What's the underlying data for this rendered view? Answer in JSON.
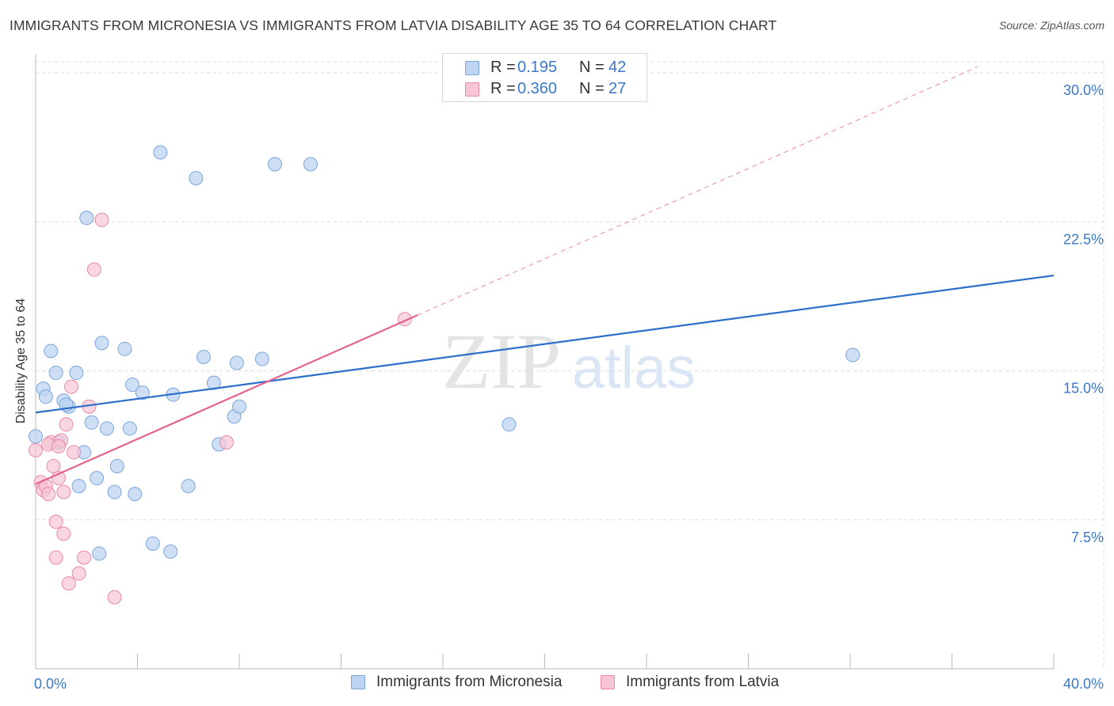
{
  "header": {
    "title": "IMMIGRANTS FROM MICRONESIA VS IMMIGRANTS FROM LATVIA DISABILITY AGE 35 TO 64 CORRELATION CHART",
    "source": "Source: ZipAtlas.com"
  },
  "watermark": {
    "zip": "ZIP",
    "atlas": "atlas"
  },
  "legend_top": {
    "rows": [
      {
        "r_label": "R =",
        "r_value": "0.195",
        "n_label": "N =",
        "n_value": "42"
      },
      {
        "r_label": "R =",
        "r_value": "0.360",
        "n_label": "N =",
        "n_value": "27"
      }
    ]
  },
  "legend_bottom": {
    "items": [
      {
        "label": "Immigrants from Micronesia"
      },
      {
        "label": "Immigrants from Latvia"
      }
    ]
  },
  "colors": {
    "micronesia_fill": "#bdd4f2",
    "micronesia_stroke": "#7aa6dd",
    "micronesia_line": "#2b6fcb",
    "latvia_fill": "#f7c5d4",
    "latvia_stroke": "#e88aa8",
    "latvia_line": "#e2638f",
    "tick_label": "#3a78c9",
    "grid": "#dcdcdc"
  },
  "chart_data": {
    "type": "scatter",
    "title": "IMMIGRANTS FROM MICRONESIA VS IMMIGRANTS FROM LATVIA DISABILITY AGE 35 TO 64 CORRELATION CHART",
    "xlabel": "",
    "ylabel": "Disability Age 35 to 64",
    "xlim": [
      0,
      40
    ],
    "ylim": [
      0,
      30.8
    ],
    "x_tick_labels": [
      "0.0%",
      "40.0%"
    ],
    "y_ticks": [
      7.5,
      15.0,
      22.5,
      30.0
    ],
    "y_tick_labels": [
      "7.5%",
      "15.0%",
      "22.5%",
      "30.0%"
    ],
    "grid": true,
    "legend": "top-center",
    "series": [
      {
        "name": "Immigrants from Micronesia",
        "r": 0.195,
        "n": 42,
        "trend": {
          "x": [
            0,
            40
          ],
          "y": [
            12.9,
            19.8
          ]
        },
        "points": [
          [
            0.0,
            11.7
          ],
          [
            0.3,
            14.1
          ],
          [
            0.4,
            13.7
          ],
          [
            0.6,
            16.0
          ],
          [
            0.8,
            14.9
          ],
          [
            0.9,
            11.4
          ],
          [
            1.1,
            13.5
          ],
          [
            1.3,
            13.2
          ],
          [
            1.6,
            14.9
          ],
          [
            1.7,
            9.2
          ],
          [
            1.9,
            10.9
          ],
          [
            2.0,
            22.7
          ],
          [
            2.2,
            12.4
          ],
          [
            2.4,
            9.6
          ],
          [
            2.5,
            5.8
          ],
          [
            2.6,
            16.4
          ],
          [
            2.8,
            12.1
          ],
          [
            3.1,
            8.9
          ],
          [
            3.2,
            10.2
          ],
          [
            3.5,
            16.1
          ],
          [
            3.7,
            12.1
          ],
          [
            3.8,
            14.3
          ],
          [
            3.9,
            8.8
          ],
          [
            4.2,
            13.9
          ],
          [
            4.6,
            6.3
          ],
          [
            4.9,
            26.0
          ],
          [
            5.3,
            5.9
          ],
          [
            5.4,
            13.8
          ],
          [
            6.0,
            9.2
          ],
          [
            6.3,
            24.7
          ],
          [
            6.6,
            15.7
          ],
          [
            7.0,
            14.4
          ],
          [
            7.2,
            11.3
          ],
          [
            7.8,
            12.7
          ],
          [
            7.9,
            15.4
          ],
          [
            8.0,
            13.2
          ],
          [
            8.9,
            15.6
          ],
          [
            9.4,
            25.4
          ],
          [
            10.8,
            25.4
          ],
          [
            18.6,
            12.3
          ],
          [
            32.1,
            15.8
          ],
          [
            1.2,
            13.3
          ]
        ]
      },
      {
        "name": "Immigrants from Latvia",
        "r": 0.36,
        "n": 27,
        "trend": {
          "x": [
            0,
            15
          ],
          "y": [
            9.3,
            17.8
          ]
        },
        "trend_extended": {
          "x": [
            15,
            37
          ],
          "y": [
            17.8,
            30.3
          ]
        },
        "points": [
          [
            0.0,
            11.0
          ],
          [
            0.2,
            9.4
          ],
          [
            0.3,
            9.0
          ],
          [
            0.4,
            9.2
          ],
          [
            0.5,
            8.8
          ],
          [
            0.6,
            11.4
          ],
          [
            0.7,
            10.2
          ],
          [
            0.8,
            7.4
          ],
          [
            0.8,
            5.6
          ],
          [
            0.9,
            9.6
          ],
          [
            1.0,
            11.5
          ],
          [
            1.1,
            6.8
          ],
          [
            1.1,
            8.9
          ],
          [
            1.2,
            12.3
          ],
          [
            1.3,
            4.3
          ],
          [
            1.4,
            14.2
          ],
          [
            1.5,
            10.9
          ],
          [
            1.7,
            4.8
          ],
          [
            1.9,
            5.6
          ],
          [
            2.1,
            13.2
          ],
          [
            2.6,
            22.6
          ],
          [
            2.3,
            20.1
          ],
          [
            3.1,
            3.6
          ],
          [
            7.5,
            11.4
          ],
          [
            14.5,
            17.6
          ],
          [
            0.5,
            11.3
          ],
          [
            0.9,
            11.2
          ]
        ]
      }
    ]
  }
}
